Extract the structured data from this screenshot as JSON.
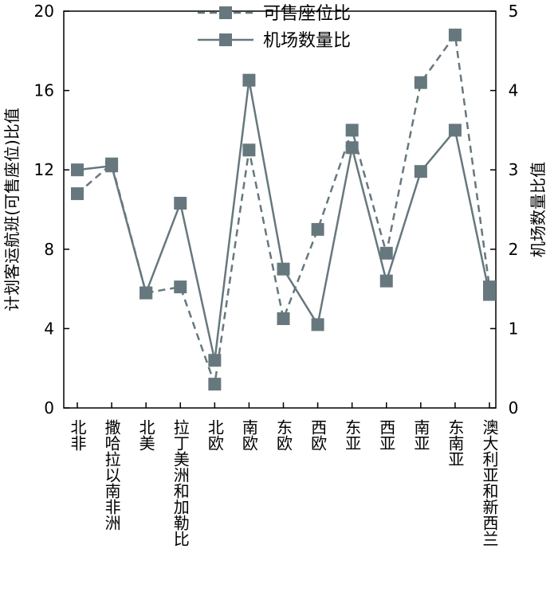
{
  "chart_data": {
    "type": "line",
    "categories": [
      "北非",
      "撒哈拉以南非洲",
      "北美",
      "拉丁美洲和加勒比",
      "北欧",
      "南欧",
      "东欧",
      "西欧",
      "东亚",
      "西亚",
      "南亚",
      "东南亚",
      "澳大利亚和新西兰"
    ],
    "y_label": "计划客运航班(可售座位)比值",
    "y2_label": "机场数量比值",
    "ylim": [
      0,
      20
    ],
    "yticks": [
      0,
      4,
      8,
      12,
      16,
      20
    ],
    "y2lim": [
      0,
      5
    ],
    "y2ticks": [
      0,
      1,
      2,
      3,
      4,
      5
    ],
    "legend": "top",
    "series": [
      {
        "name": "可售座位比",
        "color": "#66787e",
        "dashed": true,
        "axis": "y",
        "values": [
          10.8,
          12.3,
          5.8,
          6.1,
          1.2,
          13.0,
          4.5,
          9.0,
          14.0,
          7.8,
          16.4,
          18.8,
          6.1
        ]
      },
      {
        "name": "机场数量比",
        "color": "#66787e",
        "dashed": false,
        "axis": "y2",
        "values": [
          3.0,
          3.05,
          1.45,
          2.58,
          0.6,
          4.13,
          1.75,
          1.05,
          3.28,
          1.6,
          2.98,
          3.5,
          1.43
        ]
      }
    ]
  }
}
